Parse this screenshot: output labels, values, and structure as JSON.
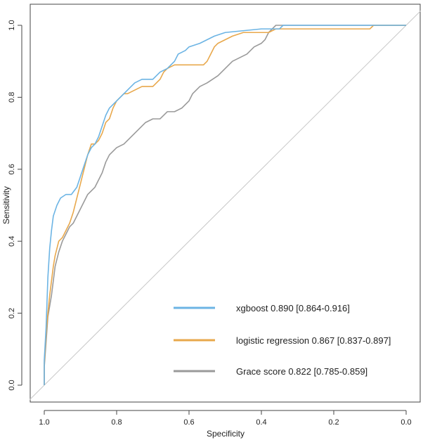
{
  "chart_data": {
    "type": "line",
    "title": "",
    "xlabel": "Specificity",
    "ylabel": "Sensitivity",
    "xlim": [
      1.04,
      -0.04
    ],
    "ylim": [
      -0.04,
      1.04
    ],
    "x_reversed": true,
    "grid": false,
    "legend_position": "bottom-right",
    "x_ticks": [
      {
        "value": 1.0,
        "label": "1.0"
      },
      {
        "value": 0.8,
        "label": "0.8"
      },
      {
        "value": 0.6,
        "label": "0.6"
      },
      {
        "value": 0.4,
        "label": "0.4"
      },
      {
        "value": 0.2,
        "label": "0.2"
      },
      {
        "value": 0.0,
        "label": "0.0"
      }
    ],
    "y_ticks": [
      {
        "value": 0.0,
        "label": "0.0"
      },
      {
        "value": 0.2,
        "label": "0.2"
      },
      {
        "value": 0.4,
        "label": "0.4"
      },
      {
        "value": 0.6,
        "label": "0.6"
      },
      {
        "value": 0.8,
        "label": "0.8"
      },
      {
        "value": 1.0,
        "label": "1.0"
      }
    ],
    "reference_line": {
      "from": [
        1.0,
        0.0
      ],
      "to": [
        0.0,
        1.0
      ],
      "color": "#c8c8c8"
    },
    "series": [
      {
        "name": "xgboost 0.890 [0.864-0.916]",
        "color": "#6cb4e4",
        "points": [
          [
            1.0,
            0.0
          ],
          [
            1.0,
            0.07
          ],
          [
            0.995,
            0.16
          ],
          [
            0.99,
            0.3
          ],
          [
            0.985,
            0.38
          ],
          [
            0.98,
            0.43
          ],
          [
            0.975,
            0.47
          ],
          [
            0.965,
            0.5
          ],
          [
            0.955,
            0.52
          ],
          [
            0.94,
            0.53
          ],
          [
            0.925,
            0.53
          ],
          [
            0.91,
            0.55
          ],
          [
            0.9,
            0.58
          ],
          [
            0.89,
            0.61
          ],
          [
            0.88,
            0.64
          ],
          [
            0.87,
            0.66
          ],
          [
            0.86,
            0.67
          ],
          [
            0.85,
            0.69
          ],
          [
            0.84,
            0.72
          ],
          [
            0.83,
            0.75
          ],
          [
            0.82,
            0.77
          ],
          [
            0.8,
            0.79
          ],
          [
            0.79,
            0.8
          ],
          [
            0.77,
            0.82
          ],
          [
            0.75,
            0.84
          ],
          [
            0.73,
            0.85
          ],
          [
            0.7,
            0.85
          ],
          [
            0.68,
            0.87
          ],
          [
            0.66,
            0.88
          ],
          [
            0.64,
            0.9
          ],
          [
            0.63,
            0.92
          ],
          [
            0.61,
            0.93
          ],
          [
            0.6,
            0.94
          ],
          [
            0.57,
            0.95
          ],
          [
            0.55,
            0.96
          ],
          [
            0.53,
            0.97
          ],
          [
            0.5,
            0.98
          ],
          [
            0.4,
            0.99
          ],
          [
            0.35,
            0.99
          ],
          [
            0.34,
            1.0
          ],
          [
            0.0,
            1.0
          ]
        ]
      },
      {
        "name": "logistic regression 0.867 [0.837-0.897]",
        "color": "#e8a84c",
        "points": [
          [
            1.0,
            0.0
          ],
          [
            1.0,
            0.06
          ],
          [
            0.995,
            0.14
          ],
          [
            0.99,
            0.2
          ],
          [
            0.985,
            0.25
          ],
          [
            0.98,
            0.29
          ],
          [
            0.975,
            0.33
          ],
          [
            0.97,
            0.36
          ],
          [
            0.96,
            0.4
          ],
          [
            0.95,
            0.41
          ],
          [
            0.94,
            0.43
          ],
          [
            0.93,
            0.45
          ],
          [
            0.92,
            0.48
          ],
          [
            0.91,
            0.52
          ],
          [
            0.9,
            0.56
          ],
          [
            0.89,
            0.6
          ],
          [
            0.88,
            0.64
          ],
          [
            0.87,
            0.67
          ],
          [
            0.86,
            0.67
          ],
          [
            0.85,
            0.68
          ],
          [
            0.84,
            0.7
          ],
          [
            0.83,
            0.73
          ],
          [
            0.82,
            0.74
          ],
          [
            0.81,
            0.77
          ],
          [
            0.8,
            0.79
          ],
          [
            0.79,
            0.8
          ],
          [
            0.78,
            0.81
          ],
          [
            0.77,
            0.81
          ],
          [
            0.75,
            0.82
          ],
          [
            0.73,
            0.83
          ],
          [
            0.7,
            0.83
          ],
          [
            0.68,
            0.85
          ],
          [
            0.67,
            0.87
          ],
          [
            0.66,
            0.88
          ],
          [
            0.64,
            0.89
          ],
          [
            0.6,
            0.89
          ],
          [
            0.56,
            0.89
          ],
          [
            0.55,
            0.9
          ],
          [
            0.54,
            0.92
          ],
          [
            0.53,
            0.94
          ],
          [
            0.52,
            0.95
          ],
          [
            0.5,
            0.96
          ],
          [
            0.48,
            0.97
          ],
          [
            0.45,
            0.98
          ],
          [
            0.38,
            0.98
          ],
          [
            0.36,
            0.99
          ],
          [
            0.1,
            0.99
          ],
          [
            0.09,
            1.0
          ],
          [
            0.0,
            1.0
          ]
        ]
      },
      {
        "name": "Grace score 0.822 [0.785-0.859]",
        "color": "#9a9a9a",
        "points": [
          [
            1.0,
            0.0
          ],
          [
            1.0,
            0.05
          ],
          [
            0.995,
            0.12
          ],
          [
            0.99,
            0.19
          ],
          [
            0.98,
            0.25
          ],
          [
            0.975,
            0.29
          ],
          [
            0.97,
            0.33
          ],
          [
            0.96,
            0.37
          ],
          [
            0.95,
            0.4
          ],
          [
            0.94,
            0.42
          ],
          [
            0.93,
            0.44
          ],
          [
            0.92,
            0.45
          ],
          [
            0.91,
            0.47
          ],
          [
            0.9,
            0.49
          ],
          [
            0.89,
            0.51
          ],
          [
            0.88,
            0.53
          ],
          [
            0.87,
            0.54
          ],
          [
            0.86,
            0.55
          ],
          [
            0.85,
            0.57
          ],
          [
            0.84,
            0.59
          ],
          [
            0.83,
            0.62
          ],
          [
            0.82,
            0.64
          ],
          [
            0.8,
            0.66
          ],
          [
            0.78,
            0.67
          ],
          [
            0.76,
            0.69
          ],
          [
            0.74,
            0.71
          ],
          [
            0.72,
            0.73
          ],
          [
            0.7,
            0.74
          ],
          [
            0.68,
            0.74
          ],
          [
            0.66,
            0.76
          ],
          [
            0.64,
            0.76
          ],
          [
            0.62,
            0.77
          ],
          [
            0.6,
            0.79
          ],
          [
            0.59,
            0.81
          ],
          [
            0.57,
            0.83
          ],
          [
            0.55,
            0.84
          ],
          [
            0.52,
            0.86
          ],
          [
            0.5,
            0.88
          ],
          [
            0.48,
            0.9
          ],
          [
            0.46,
            0.91
          ],
          [
            0.44,
            0.92
          ],
          [
            0.42,
            0.94
          ],
          [
            0.4,
            0.95
          ],
          [
            0.39,
            0.96
          ],
          [
            0.38,
            0.98
          ],
          [
            0.37,
            0.99
          ],
          [
            0.36,
            1.0
          ],
          [
            0.0,
            1.0
          ]
        ]
      }
    ]
  }
}
